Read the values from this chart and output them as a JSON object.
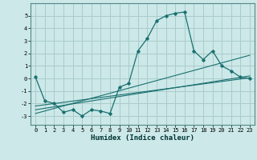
{
  "xlabel": "Humidex (Indice chaleur)",
  "bg_color": "#cce8e8",
  "grid_color": "#aacccc",
  "line_color": "#1a7070",
  "xlim": [
    -0.5,
    23.5
  ],
  "ylim": [
    -3.7,
    6.0
  ],
  "xticks": [
    0,
    1,
    2,
    3,
    4,
    5,
    6,
    7,
    8,
    9,
    10,
    11,
    12,
    13,
    14,
    15,
    16,
    17,
    18,
    19,
    20,
    21,
    22,
    23
  ],
  "yticks": [
    -3,
    -2,
    -1,
    0,
    1,
    2,
    3,
    4,
    5
  ],
  "curve1_x": [
    0,
    1,
    2,
    3,
    4,
    5,
    6,
    7,
    8,
    9,
    10,
    11,
    12,
    13,
    14,
    15,
    16,
    17,
    18,
    19,
    20,
    21,
    22,
    23
  ],
  "curve1_y": [
    0.1,
    -1.8,
    -2.0,
    -2.7,
    -2.5,
    -3.0,
    -2.5,
    -2.6,
    -2.8,
    -0.7,
    -0.4,
    2.2,
    3.2,
    4.6,
    5.0,
    5.2,
    5.3,
    2.2,
    1.5,
    2.2,
    1.0,
    0.6,
    0.1,
    0.0
  ],
  "line1_x": [
    0,
    23
  ],
  "line1_y": [
    -2.2,
    0.05
  ],
  "line2_x": [
    0,
    23
  ],
  "line2_y": [
    -2.5,
    0.2
  ],
  "line3_x": [
    0,
    23
  ],
  "line3_y": [
    -2.8,
    1.85
  ],
  "tick_fontsize": 5.0,
  "xlabel_fontsize": 6.5
}
